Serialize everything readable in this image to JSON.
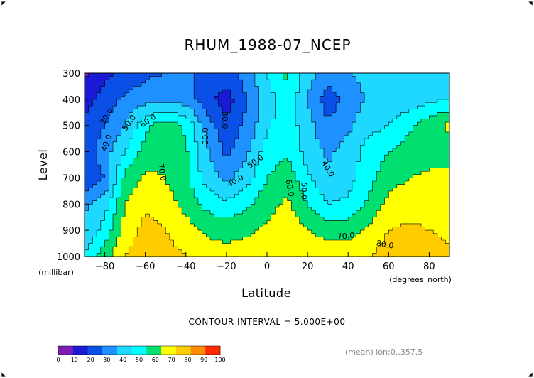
{
  "chart_data": {
    "type": "heatmap",
    "title": "RHUM_1988-07_NCEP",
    "xlabel": "Latitude",
    "ylabel": "Level",
    "x_units": "(degrees_north)",
    "y_units": "(millibar)",
    "xlim": [
      -90,
      90
    ],
    "ylim": [
      1000,
      300
    ],
    "x_ticks": [
      -80,
      -60,
      -40,
      -20,
      0,
      20,
      40,
      60,
      80
    ],
    "y_ticks": [
      300,
      400,
      500,
      600,
      700,
      800,
      900,
      1000
    ],
    "x": [
      -90,
      -80,
      -70,
      -60,
      -50,
      -40,
      -30,
      -20,
      -10,
      0,
      10,
      20,
      30,
      40,
      50,
      60,
      70,
      80,
      90
    ],
    "y": [
      300,
      400,
      500,
      600,
      700,
      800,
      900,
      1000
    ],
    "z": [
      [
        8,
        18,
        22,
        28,
        30,
        32,
        28,
        25,
        35,
        50,
        62,
        44,
        36,
        40,
        42,
        40,
        42,
        44,
        45
      ],
      [
        16,
        24,
        32,
        36,
        37,
        35,
        24,
        15,
        30,
        45,
        58,
        40,
        24,
        34,
        42,
        40,
        44,
        48,
        50
      ],
      [
        22,
        30,
        40,
        58,
        66,
        58,
        36,
        22,
        33,
        48,
        56,
        44,
        32,
        38,
        46,
        50,
        58,
        66,
        72
      ],
      [
        24,
        36,
        50,
        64,
        68,
        62,
        42,
        28,
        38,
        55,
        58,
        46,
        38,
        44,
        55,
        60,
        64,
        66,
        66
      ],
      [
        20,
        30,
        64,
        72,
        70,
        62,
        46,
        38,
        46,
        60,
        66,
        52,
        42,
        46,
        56,
        66,
        70,
        72,
        72
      ],
      [
        38,
        46,
        70,
        78,
        74,
        67,
        57,
        52,
        58,
        66,
        72,
        60,
        50,
        52,
        62,
        73,
        76,
        76,
        74
      ],
      [
        42,
        54,
        74,
        84,
        80,
        74,
        68,
        66,
        68,
        72,
        78,
        70,
        66,
        66,
        72,
        80,
        82,
        80,
        78
      ],
      [
        50,
        66,
        80,
        86,
        84,
        80,
        76,
        74,
        76,
        78,
        80,
        78,
        76,
        76,
        80,
        84,
        86,
        84,
        82
      ]
    ],
    "contour_labels": [
      "30.0",
      "40.0",
      "50.0",
      "60.0",
      "70.0",
      "30.0",
      "30.0",
      "40.0",
      "50.0",
      "60.0",
      "50.0",
      "40.0",
      "70.0",
      "80.0"
    ],
    "colorbar": {
      "levels": [
        0,
        10,
        20,
        30,
        40,
        50,
        60,
        70,
        80,
        90,
        100
      ],
      "colors": [
        "#7e1db3",
        "#1a1ad6",
        "#0a50e6",
        "#1e90ff",
        "#1ed8ff",
        "#00ffff",
        "#00e070",
        "#ffff00",
        "#ffcc00",
        "#ff8c00",
        "#ff2a00"
      ]
    },
    "annotations": [
      "CONTOUR INTERVAL = 5.000E+00",
      "(mean) lon:0..357.5"
    ]
  }
}
